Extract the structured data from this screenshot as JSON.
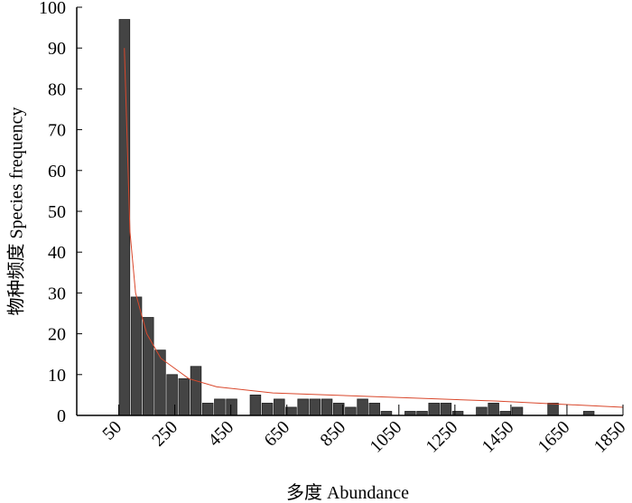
{
  "chart_data": {
    "type": "histogram",
    "xlabel": "多度 Abundance",
    "ylabel": "物种频度 Species frequency",
    "bins": [
      50,
      92.5,
      135,
      177.5,
      220,
      262.5,
      305,
      347.5,
      390,
      432.5,
      475,
      517.5,
      560,
      602.5,
      645,
      687.5,
      730,
      772.5,
      815,
      857.5,
      900,
      942.5,
      985,
      1027.5,
      1070,
      1112.5,
      1155,
      1197.5,
      1240,
      1282.5,
      1325,
      1367.5,
      1410,
      1452.5,
      1495,
      1537.5,
      1580,
      1622.5,
      1665,
      1707.5,
      1750
    ],
    "values": [
      97,
      29,
      24,
      16,
      10,
      9,
      12,
      3,
      4,
      4,
      0,
      5,
      3,
      4,
      2,
      4,
      4,
      4,
      3,
      2,
      4,
      3,
      1,
      0,
      1,
      1,
      3,
      3,
      1,
      0,
      2,
      3,
      1,
      2,
      0,
      0,
      3,
      0,
      0,
      1
    ],
    "color": "#444444",
    "fit": {
      "color": "#d9472b",
      "x": [
        70,
        90,
        110,
        150,
        200,
        300,
        400,
        600,
        800,
        1000,
        1400,
        1850
      ],
      "y": [
        90,
        45,
        30,
        20,
        14,
        9,
        7,
        5.5,
        5,
        4.5,
        3.5,
        2
      ]
    },
    "xlim": [
      -100,
      1850
    ],
    "ylim": [
      0,
      100
    ],
    "xticks": [
      50,
      250,
      450,
      650,
      850,
      1050,
      1250,
      1450,
      1650,
      1850
    ],
    "yticks": [
      0,
      10,
      20,
      30,
      40,
      50,
      60,
      70,
      80,
      90,
      100
    ]
  }
}
